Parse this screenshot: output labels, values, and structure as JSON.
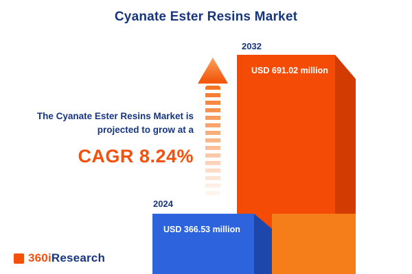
{
  "title": "Cyanate Ester Resins Market",
  "description": {
    "line1": "The Cyanate Ester Resins Market is",
    "line2": "projected to grow at a",
    "cagr": "CAGR 8.24%"
  },
  "chart_data": {
    "type": "bar",
    "title": "Cyanate Ester Resins Market",
    "categories": [
      "2024",
      "2032"
    ],
    "values": [
      366.53,
      691.02
    ],
    "unit": "USD million",
    "data_labels": [
      "USD 366.53 million",
      "USD 691.02 million"
    ],
    "cagr_percent": 8.24,
    "annotation": "The Cyanate Ester Resins Market is projected to grow at a CAGR 8.24%",
    "legend": "none",
    "axes": "none",
    "style": "3d-infographic-bars"
  },
  "bars": [
    {
      "year": "2024",
      "label": "USD 366.53 million",
      "color": "#2d63dc",
      "side_color": "#1d47ab"
    },
    {
      "year": "2032",
      "label": "USD 691.02 million",
      "color": "#f44b07",
      "side_color": "#d23c03",
      "base_color": "#f57e1b"
    }
  ],
  "logo": {
    "prefix": "360i",
    "suffix": "Research"
  },
  "colors": {
    "navy": "#17357e",
    "orange": "#f4500c",
    "blue": "#2d63dc"
  }
}
